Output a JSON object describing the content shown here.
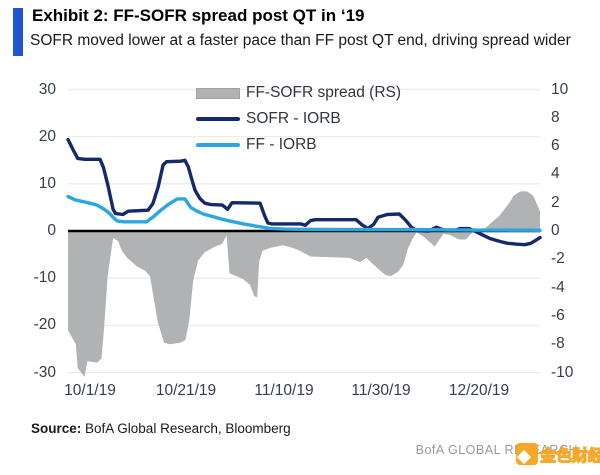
{
  "header": {
    "title": "Exhibit 2: FF-SOFR spread post QT in ‘19",
    "subtitle": "SOFR moved lower at a faster pace than FF post QT end, driving spread wider",
    "accent_color": "#2057CC"
  },
  "source": {
    "label": "Source:",
    "text": " BofA Global Research, Bloomberg"
  },
  "footer": {
    "brand": "BofA GLOBAL RESEARCH",
    "watermark_text": "金色财经",
    "watermark_color": "#F6A41D"
  },
  "chart_data": {
    "type": "combo",
    "title": "FF-SOFR spread post QT in '19",
    "x_domain_days": [
      0,
      97.3
    ],
    "x_ticks": [
      {
        "day": 4.5,
        "label": "10/1/19"
      },
      {
        "day": 24.4,
        "label": "10/21/19"
      },
      {
        "day": 44.5,
        "label": "11/10/19"
      },
      {
        "day": 64.6,
        "label": "11/30/19"
      },
      {
        "day": 84.7,
        "label": "12/20/19"
      }
    ],
    "left_axis": {
      "min": -30,
      "max": 30,
      "ticks": [
        30,
        20,
        10,
        0,
        -10,
        -20,
        -30
      ]
    },
    "right_axis": {
      "min": -10,
      "max": 10,
      "ticks": [
        10,
        8,
        6,
        4,
        2,
        0,
        -2,
        -4,
        -6,
        -8,
        -10
      ]
    },
    "grid_color": "#E8E9EB",
    "zero_line_color": "#000000",
    "legend": [
      "FF-SOFR spread (RS)",
      "SOFR - IORB",
      "FF - IORB"
    ],
    "series": [
      {
        "name": "FF-SOFR spread (RS)",
        "type": "area",
        "axis": "right",
        "color": "#B1B2B4",
        "points": [
          [
            0,
            -7.0
          ],
          [
            1.6,
            -8.0
          ],
          [
            2,
            -9.7
          ],
          [
            3.4,
            -10.3
          ],
          [
            4,
            -9.2
          ],
          [
            6,
            -9.3
          ],
          [
            6.9,
            -9.0
          ],
          [
            7.4,
            -7.0
          ],
          [
            8.2,
            -3.1
          ],
          [
            9.3,
            -0.5
          ],
          [
            10.3,
            -0.7
          ],
          [
            11.1,
            -1.4
          ],
          [
            12.2,
            -1.9
          ],
          [
            14.2,
            -2.5
          ],
          [
            15.9,
            -2.8
          ],
          [
            16.9,
            -3.2
          ],
          [
            18.5,
            -6.4
          ],
          [
            19.8,
            -7.9
          ],
          [
            21,
            -8.0
          ],
          [
            23.1,
            -7.9
          ],
          [
            24.2,
            -7.7
          ],
          [
            25,
            -6.3
          ],
          [
            25.8,
            -3.5
          ],
          [
            26.8,
            -2.1
          ],
          [
            28.2,
            -1.5
          ],
          [
            30.3,
            -1.1
          ],
          [
            31.8,
            -0.9
          ],
          [
            32.7,
            -0.3
          ],
          [
            33.3,
            -3.0
          ],
          [
            34.8,
            -3.2
          ],
          [
            36.1,
            -3.4
          ],
          [
            37.5,
            -3.8
          ],
          [
            38.4,
            -4.6
          ],
          [
            39,
            -4.7
          ],
          [
            39.4,
            -2.2
          ],
          [
            40.1,
            -1.4
          ],
          [
            41.6,
            -1.2
          ],
          [
            44.3,
            -1.0
          ],
          [
            46.4,
            -1.2
          ],
          [
            47.8,
            -1.4
          ],
          [
            50,
            -1.8
          ],
          [
            58,
            -1.9
          ],
          [
            60.2,
            -2.2
          ],
          [
            61.5,
            -1.9
          ],
          [
            63.7,
            -2.6
          ],
          [
            65.4,
            -3.1
          ],
          [
            66.5,
            -3.2
          ],
          [
            68,
            -2.9
          ],
          [
            69.1,
            -2.4
          ],
          [
            70.1,
            -1.2
          ],
          [
            71.1,
            -0.5
          ],
          [
            71.9,
            -0.1
          ],
          [
            73.3,
            -0.4
          ],
          [
            74.3,
            -0.7
          ],
          [
            75.6,
            -1.1
          ],
          [
            77.4,
            -0.2
          ],
          [
            78.9,
            -0.3
          ],
          [
            80.6,
            -0.6
          ],
          [
            82,
            -0.6
          ],
          [
            83.4,
            -0.1
          ],
          [
            85.4,
            0.0
          ],
          [
            87,
            0.5
          ],
          [
            89,
            1.1
          ],
          [
            91,
            2.0
          ],
          [
            91.9,
            2.5
          ],
          [
            93.2,
            2.8
          ],
          [
            94.6,
            2.8
          ],
          [
            95.9,
            2.5
          ],
          [
            97.3,
            1.4
          ]
        ]
      },
      {
        "name": "SOFR - IORB",
        "type": "line",
        "axis": "left",
        "color": "#15296B",
        "points": [
          [
            0,
            19.4
          ],
          [
            1,
            17.3
          ],
          [
            2,
            15.4
          ],
          [
            3.5,
            15.2
          ],
          [
            6.6,
            15.2
          ],
          [
            7.3,
            13.5
          ],
          [
            8.2,
            9.8
          ],
          [
            9.3,
            4.6
          ],
          [
            9.8,
            3.7
          ],
          [
            11.3,
            3.5
          ],
          [
            12.4,
            4.2
          ],
          [
            16.5,
            4.4
          ],
          [
            17.5,
            5.8
          ],
          [
            18.6,
            9.4
          ],
          [
            19.6,
            14.0
          ],
          [
            20.3,
            14.7
          ],
          [
            23.2,
            14.8
          ],
          [
            24.1,
            15.0
          ],
          [
            24.8,
            13.6
          ],
          [
            25.5,
            11.0
          ],
          [
            26.2,
            8.6
          ],
          [
            27.2,
            6.9
          ],
          [
            28.2,
            5.9
          ],
          [
            29.5,
            5.6
          ],
          [
            31.8,
            5.5
          ],
          [
            32.9,
            4.6
          ],
          [
            33.8,
            6.0
          ],
          [
            39.6,
            5.9
          ],
          [
            40.5,
            3.3
          ],
          [
            41.2,
            1.7
          ],
          [
            42,
            1.5
          ],
          [
            48,
            1.5
          ],
          [
            48.9,
            1.2
          ],
          [
            50,
            2.2
          ],
          [
            51,
            2.4
          ],
          [
            59.4,
            2.4
          ],
          [
            60.5,
            1.4
          ],
          [
            61.8,
            0.5
          ],
          [
            63,
            1.4
          ],
          [
            63.9,
            2.9
          ],
          [
            65.8,
            3.5
          ],
          [
            68.3,
            3.6
          ],
          [
            69.5,
            2.4
          ],
          [
            70.8,
            0.8
          ],
          [
            71.8,
            0.1
          ],
          [
            74.4,
            0.0
          ],
          [
            75.9,
            0.8
          ],
          [
            77.5,
            0.2
          ],
          [
            79.6,
            0.1
          ],
          [
            80.8,
            0.5
          ],
          [
            82.7,
            0.5
          ],
          [
            83.8,
            0.0
          ],
          [
            85.2,
            -0.7
          ],
          [
            87,
            -1.6
          ],
          [
            89,
            -2.2
          ],
          [
            90.6,
            -2.6
          ],
          [
            92.6,
            -2.8
          ],
          [
            94.2,
            -2.9
          ],
          [
            95.4,
            -2.6
          ],
          [
            96.4,
            -2.0
          ],
          [
            97.3,
            -1.4
          ]
        ]
      },
      {
        "name": "FF - IORB",
        "type": "line",
        "axis": "left",
        "color": "#2AA7E0",
        "points": [
          [
            0,
            7.3
          ],
          [
            1.5,
            6.6
          ],
          [
            2.8,
            6.3
          ],
          [
            4.5,
            5.9
          ],
          [
            6,
            5.5
          ],
          [
            7.2,
            4.8
          ],
          [
            8.4,
            3.9
          ],
          [
            9.4,
            2.8
          ],
          [
            10.2,
            2.1
          ],
          [
            11.5,
            1.95
          ],
          [
            16.2,
            1.95
          ],
          [
            17.6,
            3.0
          ],
          [
            19,
            4.3
          ],
          [
            20.5,
            5.5
          ],
          [
            21.7,
            6.3
          ],
          [
            22.6,
            6.8
          ],
          [
            24.1,
            6.8
          ],
          [
            25.3,
            5.0
          ],
          [
            26.6,
            4.2
          ],
          [
            27.9,
            3.6
          ],
          [
            30.7,
            2.8
          ],
          [
            33.4,
            2.1
          ],
          [
            36.2,
            1.5
          ],
          [
            39,
            1.0
          ],
          [
            41.7,
            0.55
          ],
          [
            44.5,
            0.4
          ],
          [
            47.8,
            0.35
          ],
          [
            60,
            0.3
          ],
          [
            66,
            0.3
          ],
          [
            72,
            0.3
          ],
          [
            78,
            0.25
          ],
          [
            84,
            0.2
          ],
          [
            90,
            0.2
          ],
          [
            95,
            0.18
          ],
          [
            97.3,
            0.15
          ]
        ]
      }
    ]
  }
}
